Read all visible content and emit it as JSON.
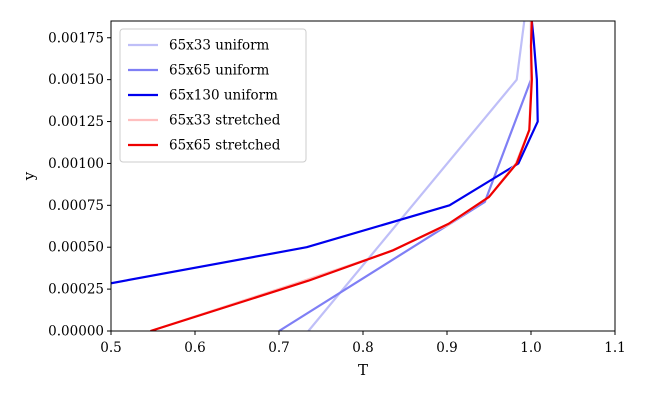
{
  "chart_data": {
    "type": "line",
    "xlabel": "T",
    "ylabel": "y",
    "xlim": [
      0.5,
      1.1
    ],
    "ylim": [
      0.0,
      0.00185
    ],
    "x_ticks": [
      "0.5",
      "0.6",
      "0.7",
      "0.8",
      "0.9",
      "1.0",
      "1.1"
    ],
    "x_tick_values": [
      0.5,
      0.6,
      0.7,
      0.8,
      0.9,
      1.0,
      1.1
    ],
    "y_ticks": [
      "0.00000",
      "0.00025",
      "0.00050",
      "0.00075",
      "0.00100",
      "0.00125",
      "0.00150",
      "0.00175"
    ],
    "y_tick_values": [
      0.0,
      0.00025,
      0.0005,
      0.00075,
      0.001,
      0.00125,
      0.0015,
      0.00175
    ],
    "grid": false,
    "legend_position": "top-left",
    "series": [
      {
        "name": "65x33 uniform",
        "color": "#bfbff8",
        "points": [
          [
            0.735,
            0.0
          ],
          [
            0.983,
            0.0015
          ],
          [
            0.992,
            0.00185
          ]
        ]
      },
      {
        "name": "65x65 uniform",
        "color": "#7f7ff5",
        "points": [
          [
            0.7,
            0.0
          ],
          [
            0.945,
            0.00077
          ],
          [
            1.0,
            0.0015
          ],
          [
            1.0,
            0.00185
          ]
        ]
      },
      {
        "name": "65x130 uniform",
        "color": "#0000ee",
        "points": [
          [
            0.5,
            0.000285
          ],
          [
            0.733,
            0.0005
          ],
          [
            0.903,
            0.00075
          ],
          [
            0.985,
            0.001
          ],
          [
            1.008,
            0.00125
          ],
          [
            1.007,
            0.0015
          ],
          [
            1.003,
            0.00175
          ],
          [
            1.001,
            0.00185
          ]
        ]
      },
      {
        "name": "65x33 stretched",
        "color": "#ffbfbf",
        "points": [
          [
            0.547,
            0.0
          ],
          [
            0.73,
            0.0003
          ],
          [
            0.83,
            0.00047
          ],
          [
            0.9,
            0.00063
          ],
          [
            0.95,
            0.0008
          ],
          [
            0.982,
            0.001
          ],
          [
            0.998,
            0.0012
          ],
          [
            1.0,
            0.0015
          ],
          [
            1.0,
            0.00185
          ]
        ]
      },
      {
        "name": "65x65 stretched",
        "color": "#ee0000",
        "points": [
          [
            0.547,
            0.0
          ],
          [
            0.735,
            0.0003
          ],
          [
            0.835,
            0.00048
          ],
          [
            0.902,
            0.00064
          ],
          [
            0.95,
            0.0008
          ],
          [
            0.983,
            0.001
          ],
          [
            0.998,
            0.0012
          ],
          [
            1.001,
            0.0015
          ],
          [
            1.0,
            0.0017
          ],
          [
            1.001,
            0.00185
          ]
        ]
      }
    ]
  }
}
